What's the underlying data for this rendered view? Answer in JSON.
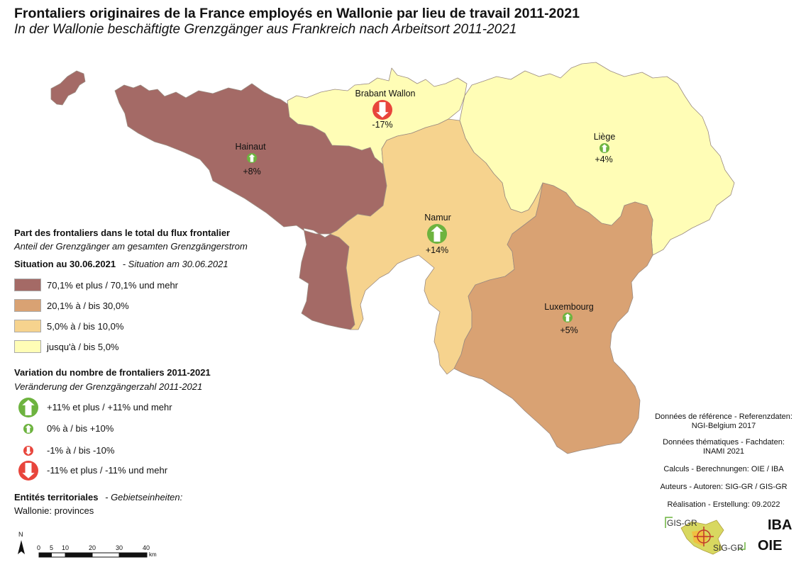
{
  "title": "Frontaliers originaires de la France employés en Wallonie par lieu de travail 2011-2021",
  "subtitle": "In der Wallonie beschäftigte Grenzgänger aus Frankreich nach Arbeitsort 2011-2021",
  "colors": {
    "class_70_plus": "#a46a66",
    "class_20_30": "#d9a273",
    "class_5_10": "#f6d38e",
    "class_0_5": "#fffdb6",
    "arrow_up": "#6db33f",
    "arrow_down": "#e8453c"
  },
  "provinces": [
    {
      "name": "Hainaut",
      "change": "+8%",
      "share_class": "class_70_plus",
      "trend": "up",
      "trend_class": "small"
    },
    {
      "name": "Brabant Wallon",
      "change": "-17%",
      "share_class": "class_0_5",
      "trend": "down",
      "trend_class": "large"
    },
    {
      "name": "Liège",
      "change": "+4%",
      "share_class": "class_0_5",
      "trend": "up",
      "trend_class": "small"
    },
    {
      "name": "Namur",
      "change": "+14%",
      "share_class": "class_5_10",
      "trend": "up",
      "trend_class": "large"
    },
    {
      "name": "Luxembourg",
      "change": "+5%",
      "share_class": "class_20_30",
      "trend": "up",
      "trend_class": "small"
    }
  ],
  "legend": {
    "share_title": "Part des frontaliers dans le total du flux frontalier",
    "share_subtitle": "Anteil der Grenzgänger am gesamten Grenzgängerstrom",
    "situation_fr": "Situation au 30.06.2021",
    "situation_de": "- Situation am 30.06.2021",
    "share_classes": [
      {
        "label": "70,1% et plus / 70,1% und mehr",
        "color": "#a46a66"
      },
      {
        "label": "20,1% à / bis 30,0%",
        "color": "#d9a273"
      },
      {
        "label": "5,0% à / bis 10,0%",
        "color": "#f6d38e"
      },
      {
        "label": "jusqu'à / bis 5,0%",
        "color": "#fffdb6"
      }
    ],
    "variation_title": "Variation du nombre de frontaliers 2011-2021",
    "variation_subtitle": "Veränderung der Grenzgängerzahl 2011-2021",
    "variation_classes": [
      {
        "label": "+11% et plus / +11% und mehr"
      },
      {
        "label": "0% à / bis +10%"
      },
      {
        "label": "-1% à / bis -10%"
      },
      {
        "label": "-11% et plus / -11% und mehr"
      }
    ],
    "entities_title": "Entités territoriales",
    "entities_subtitle": "- Gebietseinheiten:",
    "entities_value": "Wallonie: provinces"
  },
  "credits": {
    "ref_label": "Données de référence - Referenzdaten:",
    "ref_value": "NGI-Belgium 2017",
    "theme_label": "Données thématiques - Fachdaten:",
    "theme_value": "INAMI 2021",
    "calc": "Calculs - Berechnungen: OIE / IBA",
    "authors": "Auteurs - Autoren: SIG-GR / GIS-GR",
    "realisation": "Réalisation - Erstellung: 09.2022"
  },
  "scale": {
    "north": "N",
    "ticks": [
      "0",
      "5",
      "10",
      "20",
      "30",
      "40"
    ],
    "unit": "km"
  },
  "logos": {
    "gis": "GIS-GR",
    "sig": "SIG-GR",
    "iba": "IBA",
    "oie": "OIE"
  }
}
